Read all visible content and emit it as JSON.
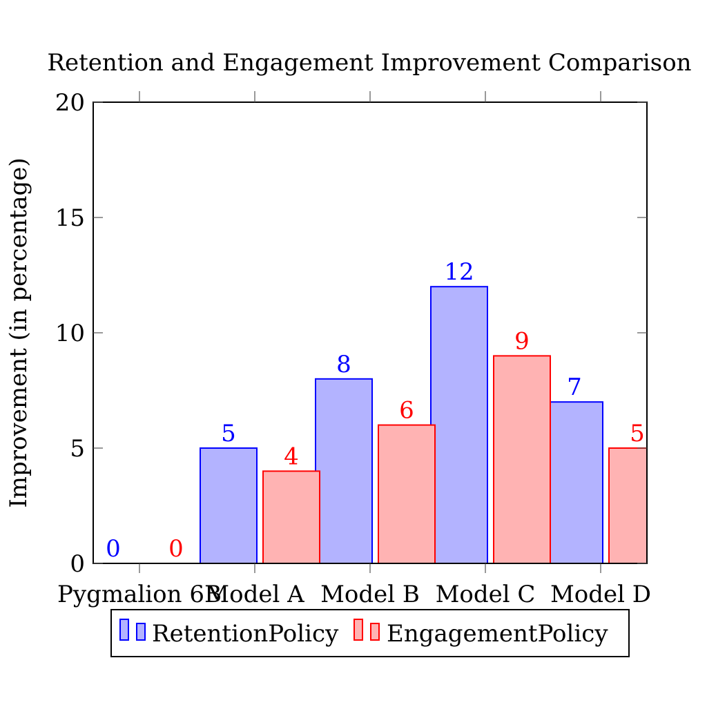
{
  "chart_data": {
    "type": "bar",
    "title": "Retention and Engagement Improvement Comparison",
    "xlabel": "",
    "ylabel": "Improvement (in percentage)",
    "categories": [
      "Pygmalion 6B",
      "Model A",
      "Model B",
      "Model C",
      "Model D"
    ],
    "series": [
      {
        "name": "RetentionPolicy",
        "values": [
          0,
          5,
          8,
          12,
          7
        ],
        "color": "#0000ff",
        "fill": "#b3b3ff"
      },
      {
        "name": "EngagementPolicy",
        "values": [
          0,
          4,
          6,
          9,
          5
        ],
        "color": "#ff0000",
        "fill": "#ffb3b3"
      }
    ],
    "ylim": [
      0,
      20
    ],
    "yticks": [
      0,
      5,
      10,
      15,
      20
    ],
    "grid": false,
    "legend_position": "bottom-center",
    "show_data_labels": true
  }
}
